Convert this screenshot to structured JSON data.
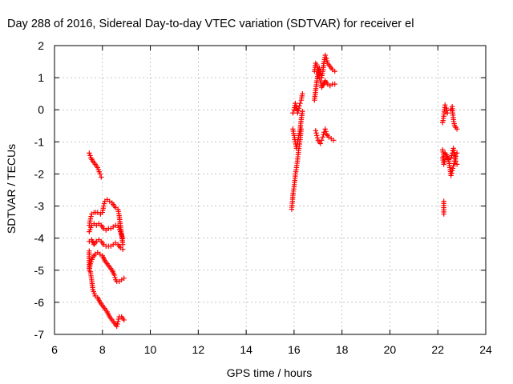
{
  "chart_data": {
    "type": "scatter",
    "title": "Day 288 of 2016, Sidereal Day-to-day VTEC variation (SDTVAR) for receiver el",
    "xlabel": "GPS time / hours",
    "ylabel": "SDTVAR / TECUs",
    "xlim": [
      6,
      24
    ],
    "ylim": [
      -7,
      2
    ],
    "xticks": [
      "6",
      "8",
      "10",
      "12",
      "14",
      "16",
      "18",
      "20",
      "22",
      "24"
    ],
    "yticks": [
      "-7",
      "-6",
      "-5",
      "-4",
      "-3",
      "-2",
      "-1",
      "0",
      "1",
      "2"
    ],
    "grid": true,
    "marker": "plus",
    "color": "#ff0000",
    "series": [
      {
        "segments": [
          [
            [
              7.45,
              -1.35
            ],
            [
              7.52,
              -1.5
            ],
            [
              7.6,
              -1.6
            ],
            [
              7.7,
              -1.7
            ],
            [
              7.8,
              -1.8
            ],
            [
              7.9,
              -2.0
            ],
            [
              7.95,
              -2.1
            ]
          ],
          [
            [
              7.45,
              -3.6
            ],
            [
              7.5,
              -3.4
            ],
            [
              7.55,
              -3.25
            ],
            [
              7.65,
              -3.2
            ],
            [
              7.8,
              -3.2
            ],
            [
              7.92,
              -3.25
            ],
            [
              8.0,
              -3.2
            ],
            [
              8.05,
              -3.0
            ],
            [
              8.1,
              -2.85
            ],
            [
              8.2,
              -2.8
            ],
            [
              8.3,
              -2.85
            ],
            [
              8.4,
              -2.9
            ],
            [
              8.5,
              -3.0
            ],
            [
              8.55,
              -3.05
            ],
            [
              8.65,
              -3.1
            ],
            [
              8.7,
              -3.3
            ],
            [
              8.75,
              -3.6
            ],
            [
              8.8,
              -3.9
            ],
            [
              8.85,
              -4.2
            ]
          ],
          [
            [
              7.45,
              -3.8
            ],
            [
              7.55,
              -3.6
            ],
            [
              7.65,
              -3.55
            ],
            [
              7.75,
              -3.6
            ],
            [
              7.85,
              -3.55
            ],
            [
              7.95,
              -3.6
            ],
            [
              8.05,
              -3.7
            ],
            [
              8.15,
              -3.75
            ],
            [
              8.25,
              -3.7
            ],
            [
              8.35,
              -3.7
            ],
            [
              8.45,
              -3.65
            ],
            [
              8.55,
              -3.6
            ],
            [
              8.65,
              -3.6
            ],
            [
              8.75,
              -3.8
            ],
            [
              8.85,
              -4.0
            ]
          ],
          [
            [
              7.45,
              -4.1
            ],
            [
              7.55,
              -4.05
            ],
            [
              7.65,
              -4.2
            ],
            [
              7.75,
              -4.1
            ],
            [
              7.85,
              -4.05
            ],
            [
              7.95,
              -4.1
            ],
            [
              8.05,
              -4.2
            ],
            [
              8.15,
              -4.25
            ],
            [
              8.25,
              -4.25
            ],
            [
              8.35,
              -4.25
            ],
            [
              8.45,
              -4.2
            ],
            [
              8.55,
              -4.15
            ],
            [
              8.65,
              -4.2
            ],
            [
              8.75,
              -4.3
            ],
            [
              8.85,
              -4.35
            ]
          ],
          [
            [
              7.45,
              -4.4
            ],
            [
              7.45,
              -4.7
            ],
            [
              7.45,
              -5.0
            ],
            [
              7.5,
              -4.8
            ],
            [
              7.6,
              -4.6
            ],
            [
              7.7,
              -4.5
            ],
            [
              7.8,
              -4.45
            ],
            [
              7.9,
              -4.5
            ],
            [
              8.0,
              -4.55
            ],
            [
              8.1,
              -4.7
            ],
            [
              8.2,
              -4.8
            ],
            [
              8.3,
              -4.9
            ],
            [
              8.4,
              -5.0
            ],
            [
              8.5,
              -5.15
            ],
            [
              8.55,
              -5.3
            ],
            [
              8.6,
              -5.35
            ],
            [
              8.7,
              -5.35
            ],
            [
              8.8,
              -5.3
            ],
            [
              8.9,
              -5.25
            ]
          ],
          [
            [
              7.5,
              -5.05
            ],
            [
              7.55,
              -5.3
            ],
            [
              7.6,
              -5.6
            ],
            [
              7.7,
              -5.8
            ],
            [
              7.8,
              -5.85
            ],
            [
              7.9,
              -6.0
            ],
            [
              8.0,
              -6.1
            ],
            [
              8.1,
              -6.2
            ],
            [
              8.2,
              -6.3
            ],
            [
              8.3,
              -6.45
            ],
            [
              8.4,
              -6.55
            ],
            [
              8.5,
              -6.65
            ],
            [
              8.6,
              -6.75
            ],
            [
              8.65,
              -6.6
            ],
            [
              8.7,
              -6.45
            ],
            [
              8.8,
              -6.45
            ],
            [
              8.9,
              -6.55
            ]
          ],
          [
            [
              15.9,
              -3.1
            ],
            [
              15.93,
              -2.85
            ],
            [
              15.96,
              -2.6
            ],
            [
              16.0,
              -2.4
            ],
            [
              16.03,
              -2.2
            ],
            [
              16.06,
              -2.0
            ],
            [
              16.1,
              -1.8
            ],
            [
              16.14,
              -1.6
            ],
            [
              16.17,
              -1.4
            ],
            [
              16.2,
              -1.2
            ],
            [
              16.24,
              -1.0
            ],
            [
              16.27,
              -0.8
            ],
            [
              16.3,
              -0.6
            ]
          ],
          [
            [
              15.95,
              -0.1
            ],
            [
              16.0,
              0.0
            ],
            [
              16.05,
              0.2
            ],
            [
              16.1,
              0.1
            ],
            [
              16.15,
              -0.1
            ],
            [
              16.2,
              0.05
            ],
            [
              16.25,
              0.2
            ],
            [
              16.3,
              0.3
            ],
            [
              16.35,
              0.5
            ]
          ],
          [
            [
              15.95,
              -0.6
            ],
            [
              16.0,
              -0.8
            ],
            [
              16.05,
              -1.0
            ],
            [
              16.1,
              -1.2
            ],
            [
              16.15,
              -1.0
            ],
            [
              16.2,
              -0.8
            ],
            [
              16.25,
              -0.6
            ],
            [
              16.3,
              -0.3
            ],
            [
              16.35,
              -0.05
            ]
          ],
          [
            [
              16.85,
              0.3
            ],
            [
              16.9,
              0.6
            ],
            [
              16.95,
              0.9
            ],
            [
              17.0,
              1.1
            ],
            [
              17.05,
              1.3
            ],
            [
              17.1,
              1.2
            ],
            [
              17.15,
              1.0
            ],
            [
              17.2,
              1.2
            ],
            [
              17.25,
              1.5
            ],
            [
              17.3,
              1.7
            ],
            [
              17.35,
              1.6
            ],
            [
              17.4,
              1.45
            ],
            [
              17.5,
              1.35
            ],
            [
              17.6,
              1.25
            ],
            [
              17.7,
              1.2
            ]
          ],
          [
            [
              16.85,
              1.2
            ],
            [
              16.9,
              1.45
            ],
            [
              16.95,
              1.4
            ],
            [
              17.0,
              1.2
            ],
            [
              17.05,
              1.0
            ],
            [
              17.1,
              0.9
            ],
            [
              17.15,
              0.7
            ],
            [
              17.2,
              0.75
            ],
            [
              17.3,
              0.9
            ],
            [
              17.4,
              0.8
            ],
            [
              17.5,
              0.75
            ],
            [
              17.6,
              0.8
            ],
            [
              17.7,
              0.8
            ]
          ],
          [
            [
              16.9,
              -0.65
            ],
            [
              16.95,
              -0.8
            ],
            [
              17.0,
              -0.95
            ],
            [
              17.05,
              -1.0
            ],
            [
              17.1,
              -1.05
            ],
            [
              17.15,
              -0.95
            ],
            [
              17.2,
              -0.85
            ],
            [
              17.25,
              -0.7
            ],
            [
              17.3,
              -0.6
            ],
            [
              17.35,
              -0.75
            ],
            [
              17.45,
              -0.85
            ],
            [
              17.55,
              -0.9
            ],
            [
              17.65,
              -0.95
            ]
          ],
          [
            [
              22.2,
              -0.4
            ],
            [
              22.25,
              -0.2
            ],
            [
              22.27,
              0.0
            ],
            [
              22.3,
              0.15
            ],
            [
              22.35,
              0.05
            ],
            [
              22.4,
              -0.1
            ]
          ],
          [
            [
              22.55,
              0.0
            ],
            [
              22.6,
              0.1
            ],
            [
              22.62,
              -0.1
            ],
            [
              22.65,
              -0.3
            ],
            [
              22.7,
              -0.5
            ],
            [
              22.75,
              -0.55
            ],
            [
              22.8,
              -0.6
            ]
          ],
          [
            [
              22.2,
              -1.25
            ],
            [
              22.25,
              -1.45
            ],
            [
              22.3,
              -1.35
            ],
            [
              22.35,
              -1.4
            ],
            [
              22.45,
              -1.55
            ],
            [
              22.5,
              -1.8
            ],
            [
              22.55,
              -2.05
            ],
            [
              22.6,
              -1.9
            ],
            [
              22.65,
              -1.75
            ],
            [
              22.7,
              -1.6
            ],
            [
              22.75,
              -1.45
            ],
            [
              22.8,
              -1.35
            ]
          ],
          [
            [
              22.2,
              -1.5
            ],
            [
              22.25,
              -1.7
            ],
            [
              22.3,
              -1.55
            ],
            [
              22.55,
              -1.5
            ],
            [
              22.6,
              -1.35
            ],
            [
              22.65,
              -1.2
            ],
            [
              22.7,
              -1.4
            ],
            [
              22.75,
              -1.6
            ],
            [
              22.8,
              -1.7
            ]
          ],
          [
            [
              22.25,
              -2.85
            ],
            [
              22.25,
              -3.05
            ],
            [
              22.25,
              -3.25
            ]
          ]
        ]
      }
    ]
  }
}
